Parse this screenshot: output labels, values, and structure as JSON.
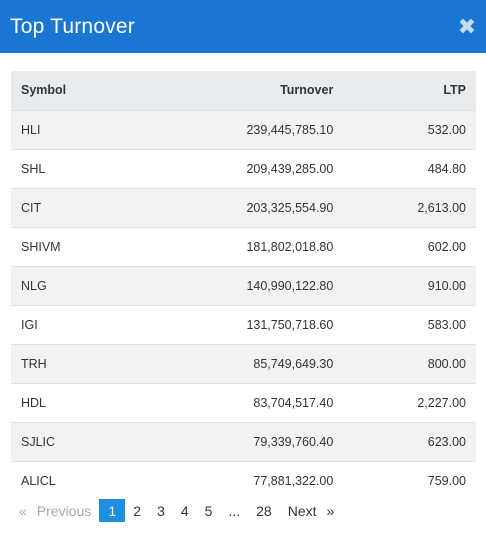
{
  "modal": {
    "title": "Top Turnover",
    "close_glyph": "✖"
  },
  "table": {
    "headers": {
      "symbol": "Symbol",
      "turnover": "Turnover",
      "ltp": "LTP"
    },
    "rows": [
      {
        "symbol": "HLI",
        "turnover": "239,445,785.10",
        "ltp": "532.00"
      },
      {
        "symbol": "SHL",
        "turnover": "209,439,285.00",
        "ltp": "484.80"
      },
      {
        "symbol": "CIT",
        "turnover": "203,325,554.90",
        "ltp": "2,613.00"
      },
      {
        "symbol": "SHIVM",
        "turnover": "181,802,018.80",
        "ltp": "602.00"
      },
      {
        "symbol": "NLG",
        "turnover": "140,990,122.80",
        "ltp": "910.00"
      },
      {
        "symbol": "IGI",
        "turnover": "131,750,718.60",
        "ltp": "583.00"
      },
      {
        "symbol": "TRH",
        "turnover": "85,749,649.30",
        "ltp": "800.00"
      },
      {
        "symbol": "HDL",
        "turnover": "83,704,517.40",
        "ltp": "2,227.00"
      },
      {
        "symbol": "SJLIC",
        "turnover": "79,339,760.40",
        "ltp": "623.00"
      },
      {
        "symbol": "ALICL",
        "turnover": "77,881,322.00",
        "ltp": "759.00"
      }
    ]
  },
  "pagination": {
    "prev_arrow": "«",
    "prev_label": "Previous",
    "pages": [
      "1",
      "2",
      "3",
      "4",
      "5",
      "...",
      "28"
    ],
    "next_label": "Next",
    "next_arrow": "»"
  },
  "colors": {
    "header_bg": "#1976d2",
    "active_page": "#1f8ee0"
  }
}
